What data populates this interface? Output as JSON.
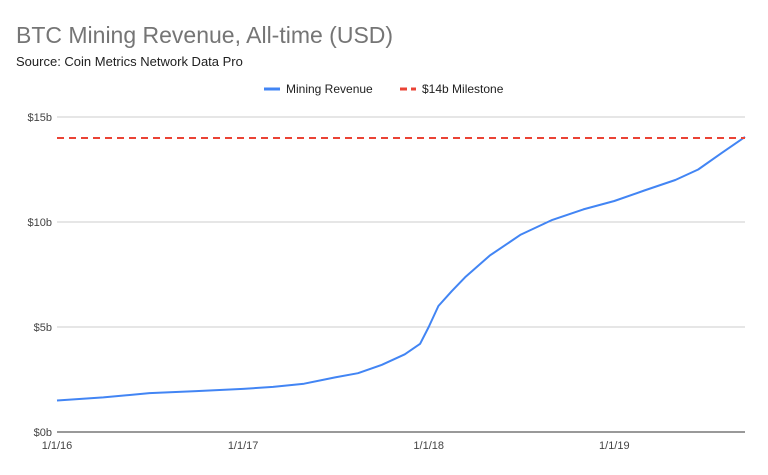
{
  "chart_data": {
    "type": "line",
    "title": "BTC Mining Revenue, All-time (USD)",
    "subtitle": "Source: Coin Metrics Network Data Pro",
    "xlabel": "",
    "ylabel": "",
    "ylim": [
      0,
      15
    ],
    "y_ticks": [
      "$0b",
      "$5b",
      "$10b",
      "$15b"
    ],
    "x_ticks": [
      "1/1/16",
      "1/1/17",
      "1/1/18",
      "1/1/19"
    ],
    "grid": true,
    "legend_position": "top",
    "colors": {
      "revenue": "#4285f4",
      "milestone": "#ea4335",
      "grid": "#cccccc"
    },
    "series": [
      {
        "name": "Mining Revenue",
        "style": "solid",
        "x": [
          "2016-01-01",
          "2016-04-01",
          "2016-07-01",
          "2016-10-01",
          "2017-01-01",
          "2017-03-01",
          "2017-05-01",
          "2017-07-01",
          "2017-08-15",
          "2017-10-01",
          "2017-11-15",
          "2017-12-15",
          "2018-01-01",
          "2018-01-20",
          "2018-02-15",
          "2018-03-15",
          "2018-05-01",
          "2018-07-01",
          "2018-09-01",
          "2018-11-01",
          "2019-01-01",
          "2019-03-01",
          "2019-05-01",
          "2019-06-15",
          "2019-08-01",
          "2019-09-15"
        ],
        "y": [
          1.5,
          1.65,
          1.85,
          1.95,
          2.05,
          2.15,
          2.3,
          2.6,
          2.8,
          3.2,
          3.7,
          4.2,
          5.0,
          6.0,
          6.7,
          7.4,
          8.4,
          9.4,
          10.1,
          10.6,
          11.0,
          11.5,
          12.0,
          12.5,
          13.3,
          14.05
        ]
      },
      {
        "name": "$14b Milestone",
        "style": "dashed",
        "x": [
          "2016-01-01",
          "2019-09-15"
        ],
        "y": [
          14,
          14
        ]
      }
    ]
  }
}
